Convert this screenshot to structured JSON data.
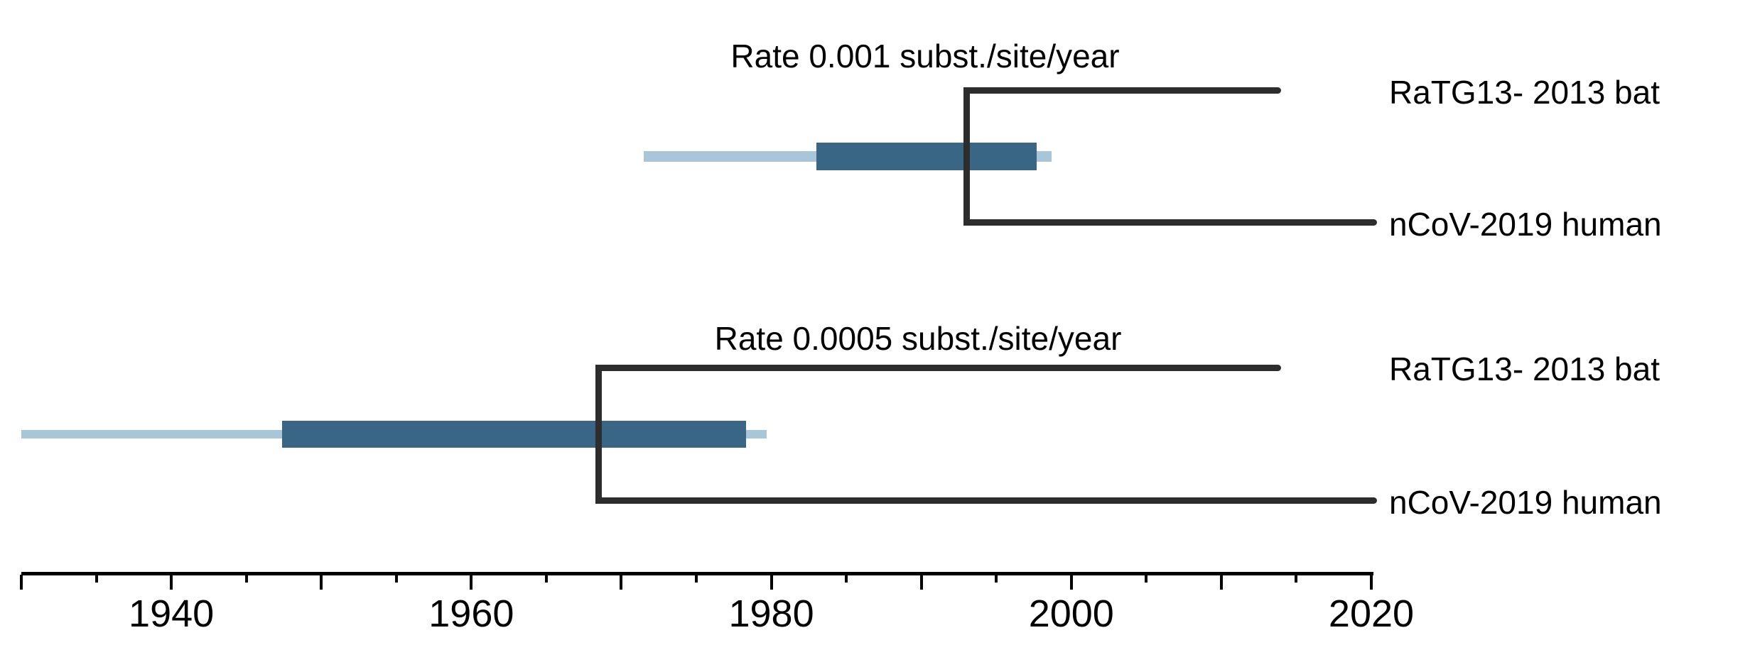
{
  "chart_data": {
    "type": "timeline-phylogeny",
    "description": "Divergence time estimates between RaTG13 bat virus and nCoV-2019 human virus under two molecular clock rates, with inner and outer confidence interval bars on the node age",
    "colors": {
      "tree_line": "#2d2d2d",
      "ci_outer": "#a9c6d9",
      "ci_inner": "#3a6685",
      "axis": "#000000",
      "background": "#ffffff",
      "text": "#000000"
    },
    "x_axis": {
      "range": [
        1930,
        2020
      ],
      "minor_tick_interval": 5,
      "major_tick_interval": 10,
      "labeled_ticks": [
        1940,
        1960,
        1980,
        2000,
        2020
      ]
    },
    "panels": [
      {
        "rate_label": "Rate 0.001 subst./site/year",
        "divergence_node_year": 1993,
        "ci_outer": [
          1971.5,
          1998.7
        ],
        "ci_inner": [
          1983,
          1997.7
        ],
        "taxa": [
          {
            "label": "RaTG13- 2013 bat",
            "tip_year": 2014
          },
          {
            "label": "nCoV-2019 human",
            "tip_year": 2020.4
          }
        ]
      },
      {
        "rate_label": "Rate 0.0005 subst./site/year",
        "divergence_node_year": 1968.5,
        "ci_outer": [
          1930,
          1979.7
        ],
        "ci_inner": [
          1947.4,
          1978.3
        ],
        "taxa": [
          {
            "label": "RaTG13- 2013 bat",
            "tip_year": 2014
          },
          {
            "label": "nCoV-2019 human",
            "tip_year": 2020.4
          }
        ]
      }
    ]
  }
}
